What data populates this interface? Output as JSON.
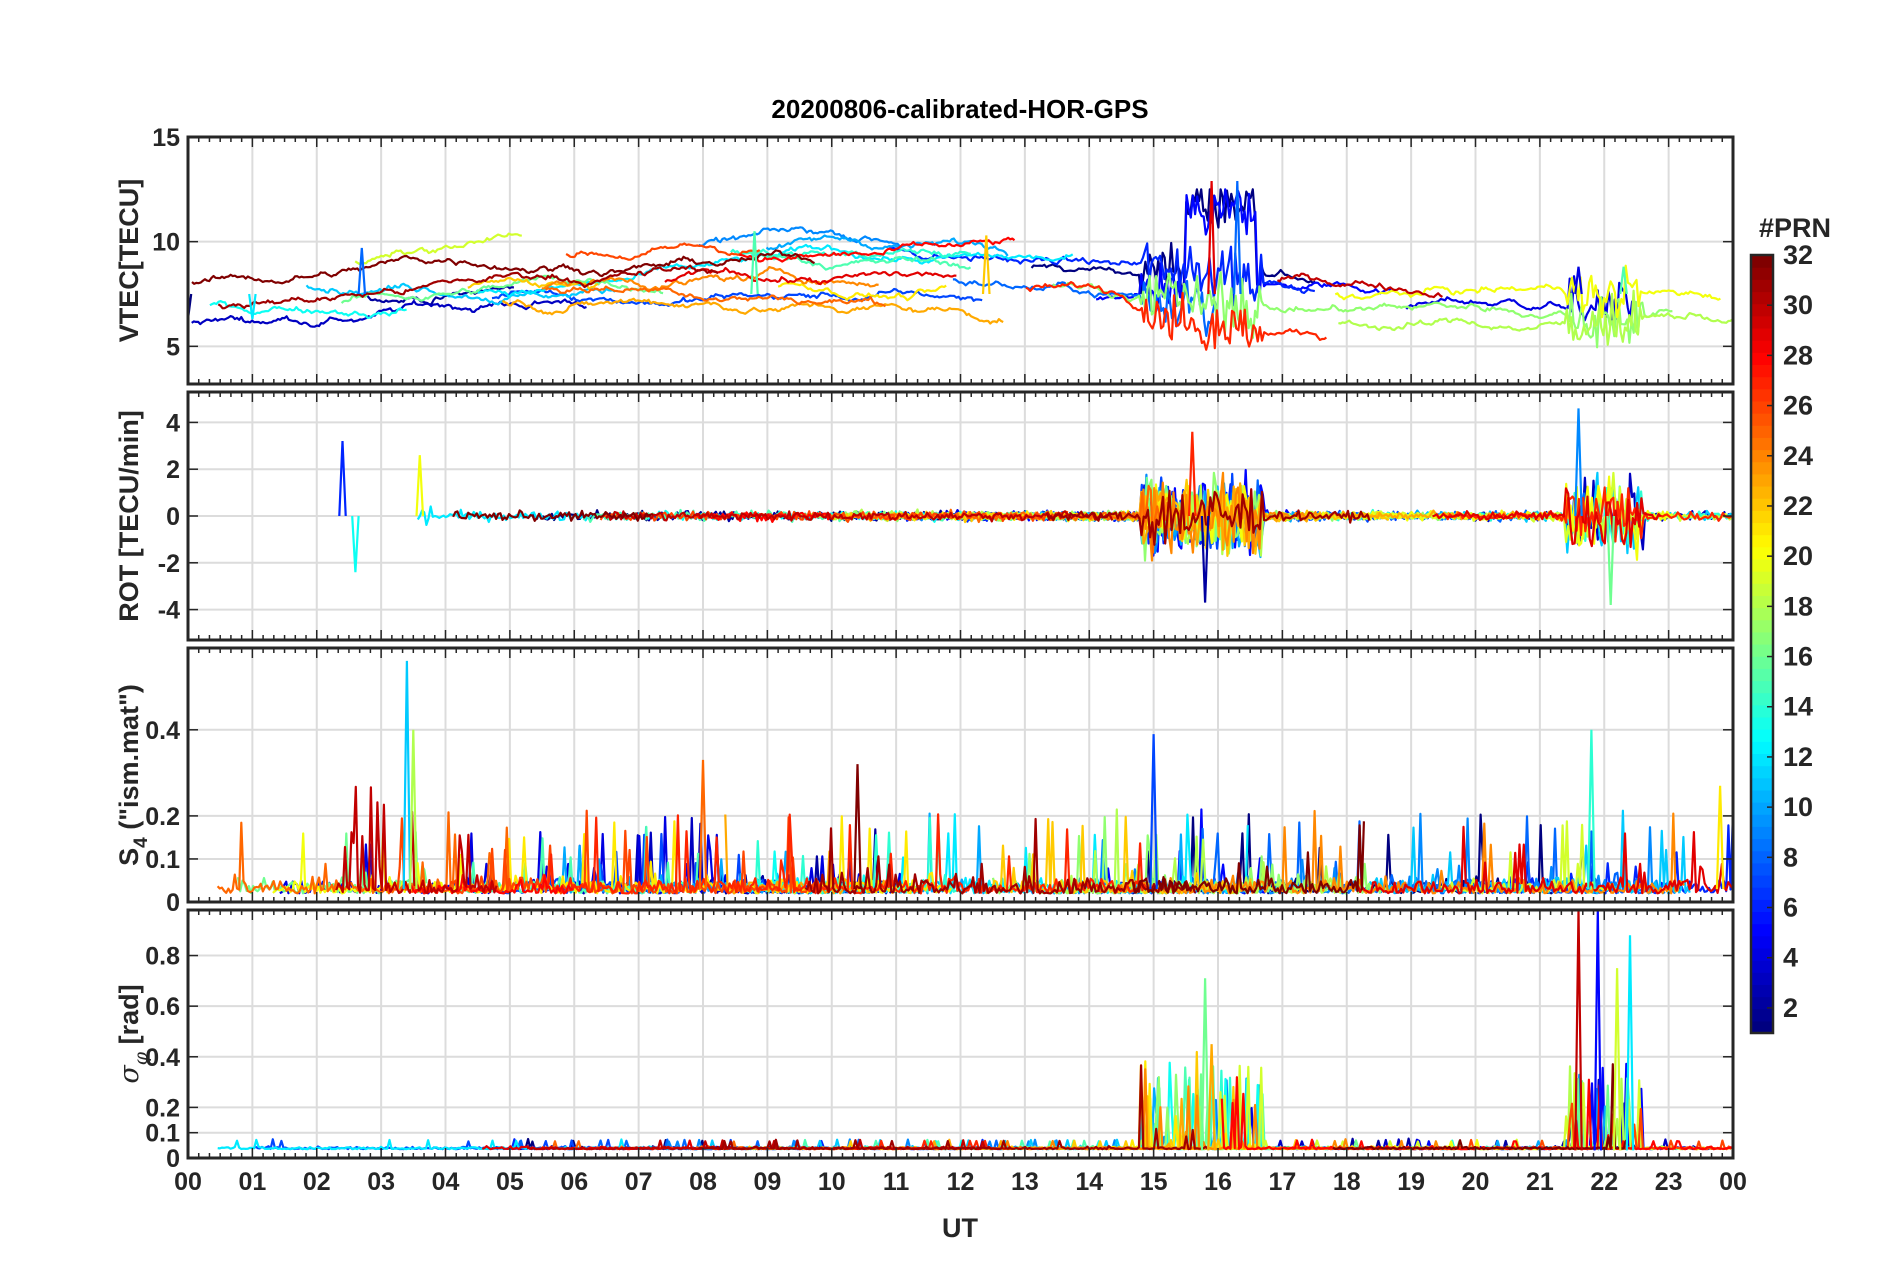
{
  "chart_data": {
    "type": "line",
    "title": "20200806-calibrated-HOR-GPS",
    "xlabel": "UT",
    "x_tick_labels": [
      "00",
      "01",
      "02",
      "03",
      "04",
      "05",
      "06",
      "07",
      "08",
      "09",
      "10",
      "11",
      "12",
      "13",
      "14",
      "15",
      "16",
      "17",
      "18",
      "19",
      "20",
      "21",
      "22",
      "23",
      "00"
    ],
    "xlim_hours": [
      0,
      24
    ],
    "grid": true,
    "colorbar": {
      "title": "#PRN",
      "colormap": "jet",
      "range": [
        1,
        32
      ],
      "tick_labels": [
        "2",
        "4",
        "6",
        "8",
        "10",
        "12",
        "14",
        "16",
        "18",
        "20",
        "22",
        "24",
        "26",
        "28",
        "30",
        "32"
      ]
    },
    "panels": [
      {
        "id": "vtec",
        "ylabel": "VTEC[TECU]",
        "ylim": [
          3.2,
          15
        ],
        "yticks": [
          5,
          10,
          15
        ],
        "ytick_labels": [
          "5",
          "10",
          "15"
        ],
        "series_summary": "Per-PRN VTEC tracks between ~5 and ~9 TECU, peaking ~13 TECU near 16 UT; disturbed 5-9 TECU near 21.5-22.5 UT",
        "events": [
          {
            "t": [
              0,
              1
            ],
            "value": 6.3
          },
          {
            "t": [
              2.7
            ],
            "value": 9.7
          },
          {
            "t": [
              8.8
            ],
            "value": 10.5
          },
          {
            "t": [
              12.4
            ],
            "value": 10.3
          },
          {
            "t": [
              15.9,
              16.3
            ],
            "value": 12.9
          },
          {
            "t": [
              21.6,
              22.3
            ],
            "value": 8.8
          }
        ]
      },
      {
        "id": "rot",
        "ylabel": "ROT [TECU/min]",
        "ylim": [
          -5.3,
          5.3
        ],
        "yticks": [
          -4,
          -2,
          0,
          2,
          4
        ],
        "ytick_labels": [
          "-4",
          "-2",
          "0",
          "2",
          "4"
        ],
        "series_summary": "Rate of TEC around 0 with spikes ±3 near 2.5-3.3 UT and ±4 near 15-16.5 UT and 21.5-22.5 UT",
        "events": [
          {
            "t": 2.4,
            "value": 3.2
          },
          {
            "t": 2.6,
            "value": -2.4
          },
          {
            "t": 3.6,
            "value": 2.6
          },
          {
            "t": 15.6,
            "value": 3.6
          },
          {
            "t": 15.8,
            "value": -3.7
          },
          {
            "t": 21.6,
            "value": 4.6
          },
          {
            "t": 22.1,
            "value": -3.8
          }
        ]
      },
      {
        "id": "s4",
        "ylabel": "S4 (\"ism.mat\")",
        "ylabel_main": "S",
        "ylabel_sub": "4",
        "ylabel_rest": "(\"ism.mat\")",
        "ylim": [
          0,
          0.59
        ],
        "yticks": [
          0,
          0.1,
          0.2,
          0.4
        ],
        "ytick_labels": [
          "0",
          "0.1",
          "0.2",
          "0.4"
        ],
        "series_summary": "Amplitude scintillation index mostly 0.02-0.15 with peaks up to 0.56 near 3.4 UT",
        "events": [
          {
            "t": 3.4,
            "value": 0.56
          },
          {
            "t": 3.5,
            "value": 0.4
          },
          {
            "t": 8.0,
            "value": 0.33
          },
          {
            "t": 10.4,
            "value": 0.32
          },
          {
            "t": 15.0,
            "value": 0.39
          },
          {
            "t": 21.8,
            "value": 0.4
          },
          {
            "t": 23.8,
            "value": 0.27
          }
        ]
      },
      {
        "id": "sigma_phi",
        "ylabel": "σφ[rad]",
        "ylabel_main": "σ",
        "ylabel_sub": "φ",
        "ylabel_rest": "[rad]",
        "ylim": [
          0,
          0.98
        ],
        "yticks": [
          0,
          0.1,
          0.2,
          0.4,
          0.6,
          0.8
        ],
        "ytick_labels": [
          "0",
          "0.1",
          "0.2",
          "0.4",
          "0.6",
          "0.8"
        ],
        "series_summary": "Phase scintillation index near 0.03-0.05, bursts to 0.7 near 15.8 UT and ~0.98 near 21.6-22.4 UT",
        "events": [
          {
            "t": 15.8,
            "value": 0.71
          },
          {
            "t": 15.9,
            "value": 0.45
          },
          {
            "t": 21.6,
            "value": 0.98
          },
          {
            "t": 21.9,
            "value": 0.98
          },
          {
            "t": 22.4,
            "value": 0.88
          },
          {
            "t": 22.2,
            "value": 0.75
          }
        ]
      }
    ]
  }
}
